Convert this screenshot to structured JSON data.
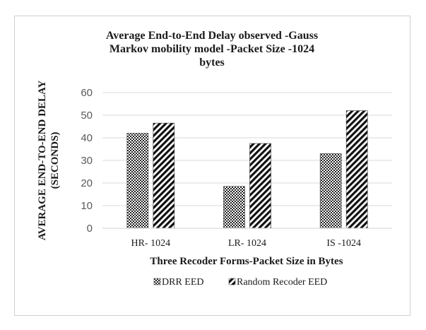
{
  "chart_data": {
    "type": "bar",
    "title_lines": [
      "Average End-to-End  Delay observed -Gauss",
      "Markov mobility  model  -Packet Size -1024",
      "bytes"
    ],
    "xlabel": "Three Recoder Forms-Packet  Size in Bytes",
    "ylabel_lines": [
      "AVERAGE  END-TO-END DELAY",
      "(SECONDS)"
    ],
    "categories": [
      "HR- 1024",
      "LR- 1024",
      "IS -1024"
    ],
    "series": [
      {
        "name": "DRR EED",
        "values": [
          42,
          18.5,
          33
        ],
        "pattern": "dots"
      },
      {
        "name": "Random Recoder EED",
        "values": [
          46.5,
          37.5,
          52
        ],
        "pattern": "diagonal"
      }
    ],
    "ylim": [
      0,
      60
    ],
    "yticks": [
      0,
      10,
      20,
      30,
      40,
      50,
      60
    ],
    "grid": true,
    "legend": "bottom"
  }
}
